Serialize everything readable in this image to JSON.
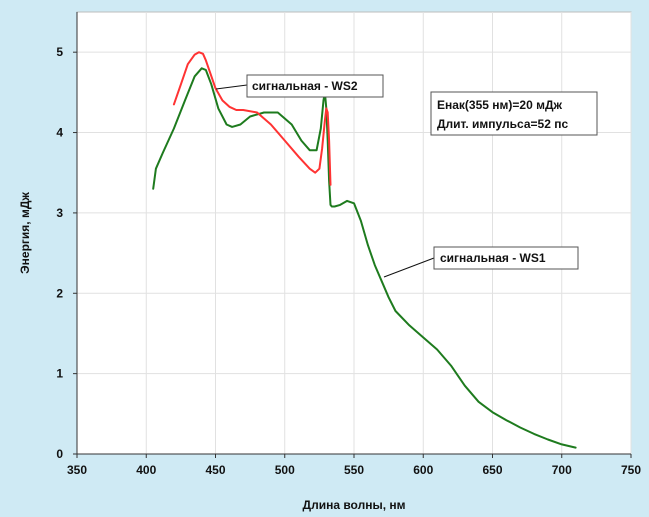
{
  "chart_data": {
    "type": "line",
    "xlabel": "Длина волны, нм",
    "ylabel": "Энергия, мДж",
    "xlim": [
      350,
      750
    ],
    "ylim": [
      0,
      5.5
    ],
    "xticks": [
      350,
      400,
      450,
      500,
      550,
      600,
      650,
      700,
      750
    ],
    "yticks": [
      0,
      1,
      2,
      3,
      4,
      5
    ],
    "grid": true,
    "legend": "none",
    "series": [
      {
        "name": "сигнальная - WS1",
        "color": "#1e7b1e",
        "x": [
          405,
          407,
          412,
          420,
          428,
          435,
          440,
          443,
          447,
          452,
          458,
          462,
          468,
          475,
          485,
          495,
          505,
          512,
          518,
          523,
          526,
          528,
          529,
          530,
          531,
          532,
          533,
          534,
          536,
          540,
          545,
          550,
          555,
          560,
          565,
          570,
          575,
          580,
          590,
          600,
          610,
          620,
          630,
          640,
          650,
          660,
          670,
          680,
          690,
          700,
          710
        ],
        "y": [
          3.3,
          3.55,
          3.75,
          4.05,
          4.4,
          4.7,
          4.8,
          4.78,
          4.6,
          4.3,
          4.1,
          4.07,
          4.1,
          4.2,
          4.25,
          4.25,
          4.1,
          3.9,
          3.78,
          3.78,
          4.05,
          4.4,
          4.5,
          4.3,
          3.9,
          3.4,
          3.1,
          3.08,
          3.08,
          3.1,
          3.15,
          3.12,
          2.9,
          2.6,
          2.35,
          2.15,
          1.95,
          1.78,
          1.6,
          1.45,
          1.3,
          1.1,
          0.85,
          0.65,
          0.52,
          0.42,
          0.33,
          0.25,
          0.18,
          0.12,
          0.08
        ]
      },
      {
        "name": "сигнальная - WS2",
        "color": "#ff3333",
        "x": [
          420,
          425,
          430,
          435,
          438,
          441,
          443,
          446,
          450,
          455,
          460,
          465,
          470,
          480,
          490,
          500,
          510,
          518,
          522,
          525,
          527,
          529,
          530,
          531,
          532,
          533
        ],
        "y": [
          4.35,
          4.6,
          4.85,
          4.97,
          5.0,
          4.98,
          4.9,
          4.75,
          4.55,
          4.4,
          4.32,
          4.28,
          4.28,
          4.25,
          4.1,
          3.9,
          3.7,
          3.55,
          3.5,
          3.55,
          3.8,
          4.15,
          4.3,
          4.25,
          3.9,
          3.35
        ]
      }
    ],
    "annotations": [
      {
        "text": "сигнальная - WS2",
        "x": 450,
        "y": 4.75
      },
      {
        "text": "сигнальная - WS1",
        "x": 570,
        "y": 2.25
      },
      {
        "text": "Енак(355 нм)=20 мДж",
        "x": null,
        "y": null
      },
      {
        "text": "Длит. импульса=52 пс",
        "x": null,
        "y": null
      }
    ]
  }
}
